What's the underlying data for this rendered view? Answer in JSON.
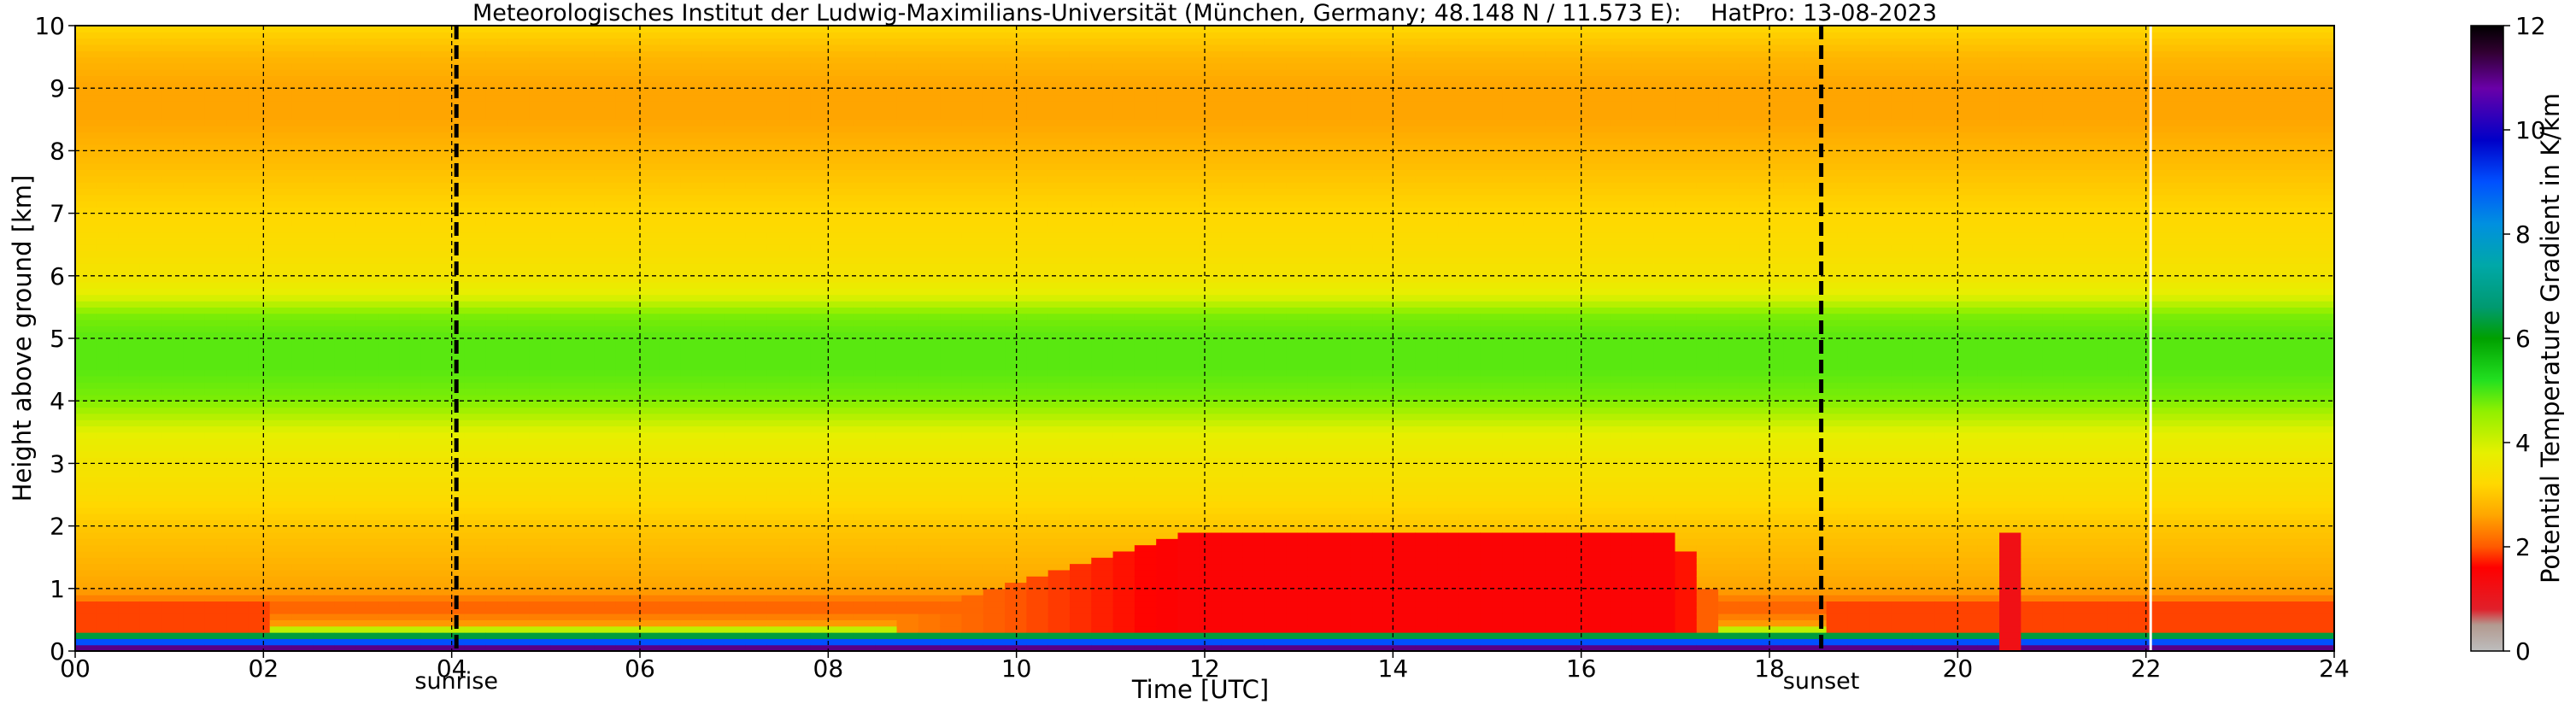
{
  "chart_data": {
    "type": "heatmap",
    "title": "Meteorologisches Institut der Ludwig-Maximilians-Universität (München, Germany; 48.148 N / 11.573 E):    HatPro: 13-08-2023",
    "xlabel": "Time [UTC]",
    "ylabel": "Height above ground [km]",
    "xlim": [
      0,
      24
    ],
    "ylim": [
      0,
      10
    ],
    "x_ticks": [
      "00",
      "02",
      "04",
      "06",
      "08",
      "10",
      "12",
      "14",
      "16",
      "18",
      "20",
      "22",
      "24"
    ],
    "y_ticks": [
      "0",
      "1",
      "2",
      "3",
      "4",
      "5",
      "6",
      "7",
      "8",
      "9",
      "10"
    ],
    "grid": true,
    "annotations": [
      {
        "label": "sunrise",
        "x": 4.05
      },
      {
        "label": "sunset",
        "x": 18.55
      }
    ],
    "data_end_x": 22.05,
    "colorbar": {
      "label": "Potential Temperature Gradient in K/km",
      "min": 0,
      "max": 12,
      "ticks": [
        "0",
        "2",
        "4",
        "6",
        "8",
        "10",
        "12"
      ],
      "stops": [
        {
          "value": 0,
          "color": "#bdbdbd"
        },
        {
          "value": 0.5,
          "color": "#b39a90"
        },
        {
          "value": 0.8,
          "color": "#e0202a"
        },
        {
          "value": 1.6,
          "color": "#ff0000"
        },
        {
          "value": 2.0,
          "color": "#ff5a00"
        },
        {
          "value": 2.6,
          "color": "#ffa500"
        },
        {
          "value": 3.2,
          "color": "#ffd800"
        },
        {
          "value": 3.8,
          "color": "#e6f000"
        },
        {
          "value": 4.6,
          "color": "#90f000"
        },
        {
          "value": 5.2,
          "color": "#22e020"
        },
        {
          "value": 6.0,
          "color": "#00a000"
        },
        {
          "value": 6.6,
          "color": "#009a70"
        },
        {
          "value": 7.4,
          "color": "#00a8a8"
        },
        {
          "value": 8.2,
          "color": "#0090e0"
        },
        {
          "value": 9.0,
          "color": "#0050ff"
        },
        {
          "value": 9.8,
          "color": "#0000c8"
        },
        {
          "value": 10.8,
          "color": "#6a00a8"
        },
        {
          "value": 11.5,
          "color": "#300030"
        },
        {
          "value": 12,
          "color": "#000000"
        }
      ]
    },
    "height_profile_km": [
      0.0,
      0.15,
      0.3,
      0.45,
      0.7,
      1.0,
      1.5,
      2.0,
      2.5,
      3.0,
      3.5,
      4.0,
      4.5,
      5.0,
      5.4,
      5.7,
      6.0,
      6.5,
      7.0,
      7.5,
      8.0,
      8.5,
      9.0,
      9.5,
      10.0
    ],
    "gradient_profile_K_per_km": [
      12.0,
      9.0,
      5.0,
      2.5,
      2.0,
      2.6,
      2.8,
      3.0,
      3.3,
      3.5,
      3.8,
      4.7,
      4.9,
      4.9,
      4.7,
      3.8,
      3.5,
      3.3,
      3.2,
      3.0,
      2.8,
      2.6,
      2.6,
      2.8,
      3.2
    ],
    "daytime_mixing_layer": {
      "start_x": 11.8,
      "end_x": 17.0,
      "top_km": 1.9,
      "value_K_per_km": 1.5
    },
    "evening_event_x": 20.55
  }
}
